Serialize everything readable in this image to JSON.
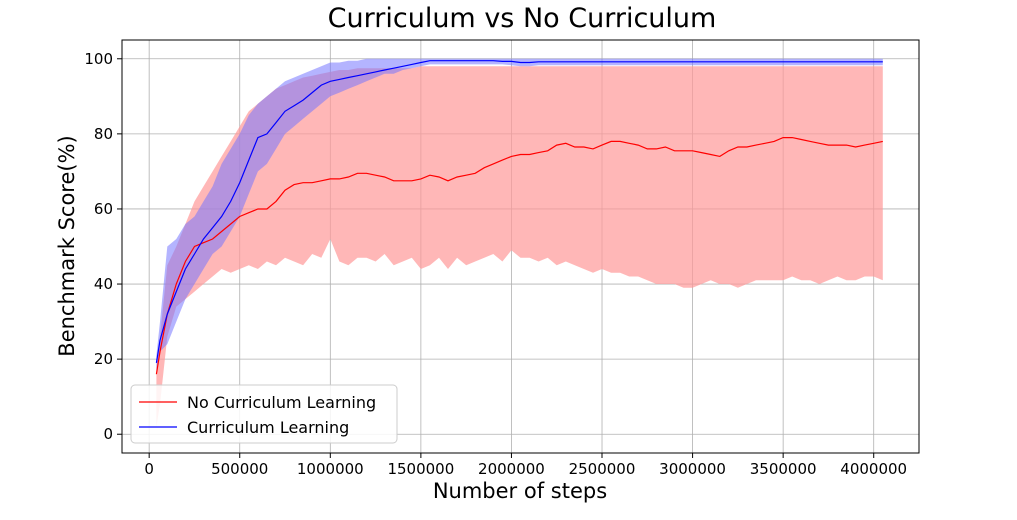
{
  "chart_data": {
    "type": "line",
    "title": "Curriculum vs No Curriculum",
    "xlabel": "Number of steps",
    "ylabel": "Benchmark Score(%)",
    "xlim": [
      -150000,
      4250000
    ],
    "ylim": [
      -5,
      105
    ],
    "x_ticks": [
      0,
      500000,
      1000000,
      1500000,
      2000000,
      2500000,
      3000000,
      3500000,
      4000000
    ],
    "x_tick_labels": [
      "0",
      "500000",
      "1000000",
      "1500000",
      "2000000",
      "2500000",
      "3000000",
      "3500000",
      "4000000"
    ],
    "y_ticks": [
      0,
      20,
      40,
      60,
      80,
      100
    ],
    "y_tick_labels": [
      "0",
      "20",
      "40",
      "60",
      "80",
      "100"
    ],
    "grid": true,
    "legend_position": "lower-left",
    "series": [
      {
        "name": "No Curriculum Learning",
        "color": "#ff0000",
        "band_color": "#ff9999",
        "x": [
          40000,
          60000,
          100000,
          150000,
          200000,
          250000,
          300000,
          350000,
          400000,
          450000,
          500000,
          550000,
          600000,
          650000,
          700000,
          750000,
          800000,
          850000,
          900000,
          950000,
          1000000,
          1050000,
          1100000,
          1150000,
          1200000,
          1250000,
          1300000,
          1350000,
          1400000,
          1450000,
          1500000,
          1550000,
          1600000,
          1650000,
          1700000,
          1750000,
          1800000,
          1850000,
          1900000,
          1950000,
          2000000,
          2050000,
          2100000,
          2150000,
          2200000,
          2250000,
          2300000,
          2350000,
          2400000,
          2450000,
          2500000,
          2550000,
          2600000,
          2650000,
          2700000,
          2750000,
          2800000,
          2850000,
          2900000,
          2950000,
          3000000,
          3050000,
          3100000,
          3150000,
          3200000,
          3250000,
          3300000,
          3350000,
          3400000,
          3450000,
          3500000,
          3550000,
          3600000,
          3650000,
          3700000,
          3750000,
          3800000,
          3850000,
          3900000,
          3950000,
          4000000,
          4050000
        ],
        "mean": [
          16,
          22,
          32,
          40,
          46,
          50,
          51,
          52,
          54,
          56,
          58,
          59,
          60,
          60,
          62,
          65,
          66.5,
          67,
          67,
          67.5,
          68,
          68,
          68.5,
          69.5,
          69.5,
          69,
          68.5,
          67.5,
          67.5,
          67.5,
          68,
          69,
          68.5,
          67.5,
          68.5,
          69,
          69.5,
          71,
          72,
          73,
          74,
          74.5,
          74.5,
          75,
          75.5,
          77,
          77.5,
          76.5,
          76.5,
          76,
          77,
          78,
          78,
          77.5,
          77,
          76,
          76,
          76.5,
          75.5,
          75.5,
          75.5,
          75,
          74.5,
          74,
          75.5,
          76.5,
          76.5,
          77,
          77.5,
          78,
          79,
          79,
          78.5,
          78,
          77.5,
          77,
          77,
          77,
          76.5,
          77,
          77.5,
          78
        ],
        "upper": [
          18,
          26,
          45,
          50,
          56,
          62,
          66,
          70,
          74,
          78,
          82,
          86,
          88,
          90,
          92,
          93,
          94,
          95,
          95.5,
          96,
          96.5,
          97,
          97,
          97.5,
          97.5,
          97.5,
          97.5,
          97.5,
          97.5,
          97.5,
          98,
          98,
          98,
          98,
          98,
          98,
          98,
          98,
          98,
          98,
          98,
          98,
          98,
          98,
          98,
          98,
          98,
          98,
          98,
          98,
          98,
          98,
          98,
          98,
          98,
          98,
          98,
          98,
          98,
          98,
          98,
          98,
          98,
          98,
          98,
          98,
          98,
          98,
          98,
          98,
          98,
          98,
          98,
          98,
          98,
          98,
          98,
          98,
          98,
          98,
          98,
          98
        ],
        "lower": [
          2,
          8,
          26,
          34,
          36,
          38,
          40,
          42,
          44,
          43,
          44,
          45,
          44,
          46,
          45,
          47,
          46,
          45,
          48,
          47,
          52,
          46,
          45,
          47,
          47,
          46,
          48,
          45,
          46,
          47,
          44,
          45,
          47,
          44,
          47,
          45,
          46,
          47,
          48,
          46,
          49,
          47,
          47,
          46,
          47,
          45,
          46,
          45,
          44,
          43,
          44,
          43,
          43,
          42,
          42,
          41,
          40,
          40,
          40,
          39,
          39,
          40,
          41,
          40,
          40,
          39,
          40,
          41,
          41,
          41,
          41,
          42,
          41,
          41,
          40,
          41,
          42,
          41,
          41,
          42,
          42,
          41
        ]
      },
      {
        "name": "Curriculum Learning",
        "color": "#0000ff",
        "band_color": "#7777ff",
        "x": [
          40000,
          60000,
          100000,
          150000,
          200000,
          250000,
          300000,
          350000,
          400000,
          450000,
          500000,
          550000,
          600000,
          650000,
          700000,
          750000,
          800000,
          850000,
          900000,
          950000,
          1000000,
          1050000,
          1100000,
          1150000,
          1200000,
          1250000,
          1300000,
          1350000,
          1400000,
          1450000,
          1500000,
          1550000,
          1600000,
          1650000,
          1700000,
          1750000,
          1800000,
          1850000,
          1900000,
          1950000,
          2000000,
          2050000,
          2100000,
          2150000,
          2200000,
          2250000,
          2300000,
          2350000,
          2400000,
          2450000,
          2500000,
          2550000,
          2600000,
          2650000,
          2700000,
          2750000,
          2800000,
          2850000,
          2900000,
          2950000,
          3000000,
          3050000,
          3100000,
          3150000,
          3200000,
          3250000,
          3300000,
          3350000,
          3400000,
          3450000,
          3500000,
          3550000,
          3600000,
          3650000,
          3700000,
          3750000,
          3800000,
          3850000,
          3900000,
          3950000,
          4000000,
          4050000
        ],
        "mean": [
          19,
          25,
          32,
          38,
          44,
          48,
          52,
          55,
          58,
          62,
          67,
          73,
          79,
          80,
          83,
          86,
          87.5,
          89,
          91,
          93,
          94,
          94.5,
          95,
          95.5,
          96,
          96.5,
          97,
          97.5,
          98,
          98.5,
          99,
          99.5,
          99.5,
          99.5,
          99.5,
          99.5,
          99.5,
          99.5,
          99.5,
          99.3,
          99.3,
          99,
          99,
          99.2,
          99.2,
          99.2,
          99.2,
          99.2,
          99.2,
          99.2,
          99.2,
          99.2,
          99.2,
          99.2,
          99.2,
          99.2,
          99.2,
          99.2,
          99.2,
          99.2,
          99.2,
          99.2,
          99.2,
          99.2,
          99.2,
          99.2,
          99.2,
          99.2,
          99.2,
          99.2,
          99.2,
          99.2,
          99.2,
          99.2,
          99.2,
          99.2,
          99.2,
          99.2,
          99.2,
          99.2,
          99.2,
          99.2
        ],
        "upper": [
          21,
          30,
          50,
          52,
          56,
          58,
          62,
          66,
          72,
          76,
          80,
          85,
          88,
          90,
          92,
          94,
          95,
          96,
          97,
          98,
          99,
          99,
          99.5,
          99.5,
          100,
          100,
          100,
          100,
          100,
          100,
          100,
          100,
          100,
          100,
          100,
          100,
          100,
          100,
          100,
          100,
          100,
          100,
          100,
          100,
          100,
          100,
          100,
          100,
          100,
          100,
          100,
          100,
          100,
          100,
          100,
          100,
          100,
          100,
          100,
          100,
          100,
          100,
          100,
          100,
          100,
          100,
          100,
          100,
          100,
          100,
          100,
          100,
          100,
          100,
          100,
          100,
          100,
          100,
          100,
          100,
          100,
          100
        ],
        "lower": [
          17,
          22,
          24,
          30,
          36,
          40,
          44,
          48,
          50,
          54,
          58,
          64,
          70,
          72,
          76,
          80,
          82,
          84,
          86,
          88,
          90,
          91,
          92,
          93,
          94,
          95,
          96,
          96,
          97,
          97.5,
          98,
          98.5,
          98.5,
          98.5,
          98.5,
          98.5,
          98.5,
          98.5,
          98.5,
          98.5,
          98.3,
          98,
          98,
          98.3,
          98.3,
          98.3,
          98.3,
          98.3,
          98.3,
          98.3,
          98.3,
          98.3,
          98.3,
          98.3,
          98.3,
          98.3,
          98.3,
          98.3,
          98.3,
          98.3,
          98.3,
          98.3,
          98.3,
          98.3,
          98.3,
          98.3,
          98.3,
          98.3,
          98.3,
          98.3,
          98.3,
          98.3,
          98.3,
          98.3,
          98.3,
          98.3,
          98.3,
          98.3,
          98.3,
          98.3,
          98.3,
          98.3
        ]
      }
    ]
  }
}
